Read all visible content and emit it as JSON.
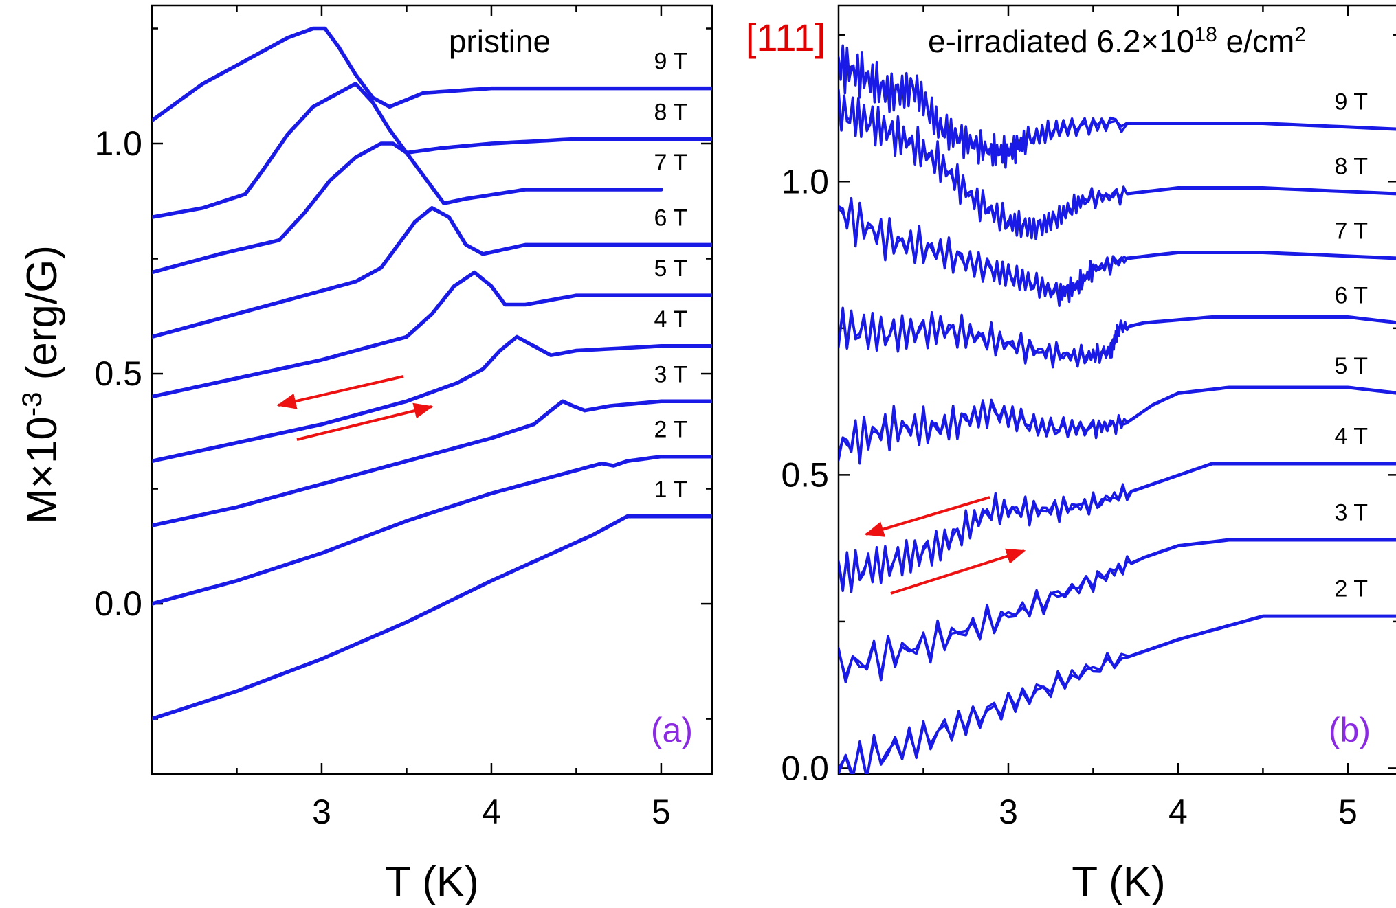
{
  "figure": {
    "orientation_label": "[111]",
    "ylabel": "M×10⁻³ (erg/G)",
    "colors": {
      "curve": "#1a1ae6",
      "arrow": "#ee1111",
      "panel_label": "#8a2be2",
      "orientation": "#e00000"
    }
  },
  "chart_data": [
    {
      "type": "line",
      "panel_label": "(a)",
      "annotation": "pristine",
      "xlabel": "T (K)",
      "ylabel": "M×10⁻³ (erg/G)",
      "xlim": [
        2.0,
        5.3
      ],
      "ylim": [
        -0.37,
        1.3
      ],
      "xticks": [
        3,
        4,
        5
      ],
      "xtick_labels": [
        "3",
        "4",
        "5"
      ],
      "yticks": [
        0.0,
        0.5,
        1.0
      ],
      "ytick_labels": [
        "0.0",
        "0.5",
        "1.0"
      ],
      "series": [
        {
          "name": "1 T",
          "label": "1 T",
          "x": [
            2.0,
            2.5,
            3.0,
            3.5,
            4.0,
            4.3,
            4.6,
            4.8,
            5.3
          ],
          "y": [
            -0.25,
            -0.19,
            -0.12,
            -0.04,
            0.05,
            0.1,
            0.15,
            0.19,
            0.19
          ]
        },
        {
          "name": "2 T",
          "label": "2 T",
          "x": [
            2.0,
            2.5,
            3.0,
            3.5,
            4.0,
            4.3,
            4.6,
            4.65,
            4.72,
            4.8,
            5.0,
            5.3
          ],
          "y": [
            0.0,
            0.05,
            0.11,
            0.18,
            0.24,
            0.27,
            0.3,
            0.305,
            0.3,
            0.31,
            0.32,
            0.32
          ]
        },
        {
          "name": "3 T",
          "label": "3 T",
          "x": [
            2.0,
            2.5,
            3.0,
            3.5,
            4.0,
            4.25,
            4.35,
            4.42,
            4.48,
            4.55,
            4.7,
            5.0,
            5.3
          ],
          "y": [
            0.17,
            0.21,
            0.26,
            0.31,
            0.36,
            0.39,
            0.42,
            0.44,
            0.43,
            0.42,
            0.43,
            0.44,
            0.44
          ]
        },
        {
          "name": "4 T",
          "label": "4 T",
          "x": [
            2.0,
            2.5,
            3.0,
            3.5,
            3.8,
            3.95,
            4.05,
            4.15,
            4.25,
            4.35,
            4.5,
            5.0,
            5.3
          ],
          "y": [
            0.31,
            0.35,
            0.39,
            0.44,
            0.48,
            0.51,
            0.55,
            0.58,
            0.56,
            0.54,
            0.55,
            0.56,
            0.56
          ]
        },
        {
          "name": "5 T",
          "label": "5 T",
          "x": [
            2.0,
            2.5,
            3.0,
            3.3,
            3.5,
            3.65,
            3.78,
            3.9,
            4.0,
            4.08,
            4.2,
            4.5,
            5.3
          ],
          "y": [
            0.45,
            0.49,
            0.53,
            0.56,
            0.58,
            0.63,
            0.69,
            0.72,
            0.69,
            0.65,
            0.65,
            0.67,
            0.67
          ]
        },
        {
          "name": "6 T",
          "label": "6 T",
          "x": [
            2.0,
            2.5,
            2.9,
            3.2,
            3.35,
            3.45,
            3.55,
            3.65,
            3.75,
            3.85,
            3.95,
            4.2,
            4.5,
            5.3
          ],
          "y": [
            0.58,
            0.63,
            0.67,
            0.7,
            0.73,
            0.78,
            0.83,
            0.86,
            0.84,
            0.78,
            0.76,
            0.78,
            0.78,
            0.78
          ]
        },
        {
          "name": "7 T",
          "label": "7 T",
          "x": [
            2.0,
            2.4,
            2.75,
            2.9,
            3.05,
            3.2,
            3.35,
            3.42,
            3.5,
            3.6,
            3.72,
            3.85,
            4.2,
            5.0
          ],
          "y": [
            0.72,
            0.76,
            0.79,
            0.85,
            0.92,
            0.97,
            1.0,
            1.0,
            0.98,
            0.93,
            0.87,
            0.88,
            0.9,
            0.9
          ]
        },
        {
          "name": "8 T",
          "label": "8 T",
          "x": [
            2.0,
            2.3,
            2.55,
            2.65,
            2.8,
            2.95,
            3.1,
            3.2,
            3.3,
            3.4,
            3.5,
            3.7,
            4.0,
            4.5,
            5.3
          ],
          "y": [
            0.84,
            0.86,
            0.89,
            0.94,
            1.02,
            1.08,
            1.11,
            1.13,
            1.09,
            1.03,
            0.98,
            0.99,
            1.0,
            1.01,
            1.01
          ]
        },
        {
          "name": "9 T",
          "label": "9 T",
          "x": [
            2.0,
            2.3,
            2.6,
            2.8,
            2.95,
            3.02,
            3.1,
            3.2,
            3.3,
            3.4,
            3.6,
            4.0,
            4.5,
            5.3
          ],
          "y": [
            1.05,
            1.13,
            1.19,
            1.23,
            1.25,
            1.25,
            1.21,
            1.15,
            1.1,
            1.08,
            1.11,
            1.12,
            1.12,
            1.12
          ]
        }
      ]
    },
    {
      "type": "line",
      "panel_label": "(b)",
      "annotation": "e-irradiated 6.2×10",
      "annotation_exponent": "18",
      "annotation_unit": " e/cm",
      "annotation_unit_exponent": "2",
      "xlabel": "T (K)",
      "ylabel": "",
      "xlim": [
        2.0,
        5.3
      ],
      "ylim": [
        -0.01,
        1.3
      ],
      "xticks": [
        3,
        4,
        5
      ],
      "xtick_labels": [
        "3",
        "4",
        "5"
      ],
      "yticks": [
        0.0,
        0.5,
        1.0
      ],
      "ytick_labels": [
        "0.0",
        "0.5",
        "1.0"
      ],
      "series": [
        {
          "name": "2 T",
          "label": "2 T",
          "x": [
            2.0,
            2.5,
            3.0,
            3.5,
            4.0,
            4.5,
            4.8,
            5.3
          ],
          "y": [
            0.0,
            0.05,
            0.11,
            0.17,
            0.22,
            0.26,
            0.26,
            0.26
          ]
        },
        {
          "name": "3 T",
          "label": "3 T",
          "x": [
            2.0,
            2.5,
            3.0,
            3.5,
            3.8,
            4.0,
            4.3,
            5.0,
            5.3
          ],
          "y": [
            0.17,
            0.21,
            0.26,
            0.32,
            0.36,
            0.38,
            0.39,
            0.39,
            0.39
          ]
        },
        {
          "name": "4 T",
          "label": "4 T",
          "x": [
            2.0,
            2.3,
            2.6,
            2.9,
            3.2,
            3.5,
            3.8,
            4.0,
            4.2,
            4.5,
            5.0,
            5.3
          ],
          "y": [
            0.33,
            0.35,
            0.38,
            0.44,
            0.44,
            0.45,
            0.48,
            0.5,
            0.52,
            0.52,
            0.52,
            0.52
          ]
        },
        {
          "name": "5 T",
          "label": "5 T",
          "x": [
            2.0,
            2.3,
            2.6,
            2.9,
            3.2,
            3.5,
            3.7,
            3.85,
            4.0,
            4.3,
            5.0,
            5.3
          ],
          "y": [
            0.55,
            0.58,
            0.58,
            0.61,
            0.58,
            0.58,
            0.59,
            0.62,
            0.64,
            0.65,
            0.65,
            0.64
          ]
        },
        {
          "name": "6 T",
          "label": "6 T",
          "x": [
            2.0,
            2.3,
            2.6,
            2.9,
            3.2,
            3.45,
            3.6,
            3.65,
            3.8,
            4.2,
            5.0,
            5.3
          ],
          "y": [
            0.75,
            0.74,
            0.75,
            0.73,
            0.71,
            0.7,
            0.71,
            0.75,
            0.76,
            0.77,
            0.77,
            0.76
          ]
        },
        {
          "name": "7 T",
          "label": "7 T",
          "x": [
            2.0,
            2.3,
            2.6,
            2.9,
            3.1,
            3.3,
            3.4,
            3.5,
            3.7,
            4.0,
            4.5,
            5.3
          ],
          "y": [
            0.95,
            0.9,
            0.88,
            0.85,
            0.83,
            0.81,
            0.82,
            0.85,
            0.87,
            0.88,
            0.88,
            0.87
          ]
        },
        {
          "name": "8 T",
          "label": "8 T",
          "x": [
            2.0,
            2.2,
            2.4,
            2.6,
            2.8,
            3.0,
            3.15,
            3.3,
            3.45,
            3.7,
            4.0,
            4.5,
            5.3
          ],
          "y": [
            1.12,
            1.1,
            1.07,
            1.03,
            0.97,
            0.93,
            0.92,
            0.94,
            0.97,
            0.98,
            0.99,
            0.99,
            0.98
          ]
        },
        {
          "name": "9 T",
          "label": "9 T",
          "x": [
            2.0,
            2.15,
            2.3,
            2.45,
            2.6,
            2.75,
            2.9,
            3.0,
            3.1,
            3.3,
            3.6,
            4.0,
            4.5,
            5.3
          ],
          "y": [
            1.2,
            1.18,
            1.15,
            1.16,
            1.09,
            1.07,
            1.05,
            1.05,
            1.07,
            1.09,
            1.1,
            1.1,
            1.1,
            1.09
          ]
        }
      ]
    }
  ]
}
